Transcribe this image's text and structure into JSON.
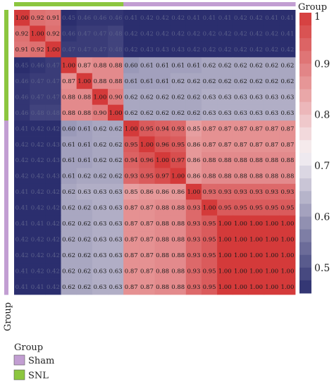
{
  "chart_data": {
    "type": "heatmap",
    "title": "",
    "row_count": 18,
    "col_count": 18,
    "groups": [
      {
        "name": "Sham",
        "color": "#c29ed2"
      },
      {
        "name": "SNL",
        "color": "#8cc63f"
      }
    ],
    "column_groups": [
      "SNL",
      "SNL",
      "SNL",
      "SNL",
      "SNL",
      "SNL",
      "SNL",
      "Sham",
      "Sham",
      "Sham",
      "Sham",
      "Sham",
      "Sham",
      "Sham",
      "Sham",
      "Sham",
      "Sham",
      "Sham"
    ],
    "row_groups": [
      "SNL",
      "SNL",
      "SNL",
      "SNL",
      "SNL",
      "SNL",
      "SNL",
      "Sham",
      "Sham",
      "Sham",
      "Sham",
      "Sham",
      "Sham",
      "Sham",
      "Sham",
      "Sham",
      "Sham",
      "Sham"
    ],
    "values": [
      [
        1.0,
        0.92,
        0.91,
        0.45,
        0.46,
        0.46,
        0.46,
        0.41,
        0.42,
        0.42,
        0.42,
        0.41,
        0.41,
        0.41,
        0.42,
        0.42,
        0.41,
        0.41
      ],
      [
        0.92,
        1.0,
        0.92,
        0.46,
        0.47,
        0.47,
        0.48,
        0.42,
        0.42,
        0.42,
        0.42,
        0.42,
        0.42,
        0.42,
        0.42,
        0.42,
        0.42,
        0.41
      ],
      [
        0.91,
        0.92,
        1.0,
        0.47,
        0.47,
        0.47,
        0.48,
        0.42,
        0.43,
        0.43,
        0.43,
        0.42,
        0.42,
        0.42,
        0.42,
        0.42,
        0.42,
        0.42
      ],
      [
        0.45,
        0.46,
        0.47,
        1.0,
        0.87,
        0.88,
        0.88,
        0.6,
        0.61,
        0.61,
        0.61,
        0.61,
        0.62,
        0.62,
        0.62,
        0.62,
        0.62,
        0.62
      ],
      [
        0.46,
        0.47,
        0.47,
        0.87,
        1.0,
        0.88,
        0.88,
        0.61,
        0.61,
        0.61,
        0.62,
        0.62,
        0.62,
        0.62,
        0.62,
        0.62,
        0.62,
        0.62
      ],
      [
        0.46,
        0.47,
        0.47,
        0.88,
        0.88,
        1.0,
        0.9,
        0.62,
        0.62,
        0.62,
        0.62,
        0.62,
        0.63,
        0.63,
        0.63,
        0.63,
        0.63,
        0.63
      ],
      [
        0.46,
        0.48,
        0.48,
        0.88,
        0.88,
        0.9,
        1.0,
        0.62,
        0.62,
        0.62,
        0.62,
        0.62,
        0.63,
        0.63,
        0.63,
        0.63,
        0.63,
        0.63
      ],
      [
        0.41,
        0.42,
        0.42,
        0.6,
        0.61,
        0.62,
        0.62,
        1.0,
        0.95,
        0.94,
        0.93,
        0.85,
        0.87,
        0.87,
        0.87,
        0.87,
        0.87,
        0.87
      ],
      [
        0.42,
        0.42,
        0.43,
        0.61,
        0.61,
        0.62,
        0.62,
        0.95,
        1.0,
        0.96,
        0.95,
        0.86,
        0.87,
        0.87,
        0.87,
        0.87,
        0.87,
        0.87
      ],
      [
        0.42,
        0.42,
        0.43,
        0.61,
        0.61,
        0.62,
        0.62,
        0.94,
        0.96,
        1.0,
        0.97,
        0.86,
        0.88,
        0.88,
        0.88,
        0.88,
        0.88,
        0.88
      ],
      [
        0.42,
        0.42,
        0.43,
        0.61,
        0.62,
        0.62,
        0.62,
        0.93,
        0.95,
        0.97,
        1.0,
        0.86,
        0.88,
        0.88,
        0.88,
        0.88,
        0.88,
        0.88
      ],
      [
        0.41,
        0.42,
        0.42,
        0.62,
        0.63,
        0.63,
        0.63,
        0.85,
        0.86,
        0.86,
        0.86,
        1.0,
        0.93,
        0.93,
        0.93,
        0.93,
        0.93,
        0.93
      ],
      [
        0.41,
        0.42,
        0.42,
        0.62,
        0.62,
        0.63,
        0.63,
        0.87,
        0.87,
        0.88,
        0.88,
        0.93,
        1.0,
        0.95,
        0.95,
        0.95,
        0.95,
        0.95
      ],
      [
        0.41,
        0.41,
        0.42,
        0.62,
        0.62,
        0.63,
        0.63,
        0.87,
        0.87,
        0.88,
        0.88,
        0.93,
        0.95,
        1.0,
        1.0,
        1.0,
        1.0,
        1.0
      ],
      [
        0.42,
        0.42,
        0.42,
        0.62,
        0.62,
        0.63,
        0.63,
        0.87,
        0.87,
        0.88,
        0.88,
        0.93,
        0.95,
        1.0,
        1.0,
        1.0,
        1.0,
        1.0
      ],
      [
        0.42,
        0.42,
        0.42,
        0.62,
        0.62,
        0.63,
        0.63,
        0.87,
        0.87,
        0.88,
        0.88,
        0.93,
        0.95,
        1.0,
        1.0,
        1.0,
        1.0,
        1.0
      ],
      [
        0.41,
        0.42,
        0.42,
        0.62,
        0.62,
        0.63,
        0.63,
        0.87,
        0.87,
        0.88,
        0.88,
        0.93,
        0.95,
        1.0,
        1.0,
        1.0,
        1.0,
        1.0
      ],
      [
        0.41,
        0.41,
        0.42,
        0.62,
        0.62,
        0.63,
        0.63,
        0.87,
        0.87,
        0.88,
        0.88,
        0.93,
        0.95,
        1.0,
        1.0,
        1.0,
        1.0,
        1.0
      ]
    ],
    "color_scale": {
      "min": 0.45,
      "max": 1.0,
      "ticks": [
        0.5,
        0.6,
        0.7,
        0.8,
        0.9,
        1
      ],
      "tick_labels": [
        "0.5",
        "0.6",
        "0.7",
        "0.8",
        "0.9",
        "1"
      ],
      "low_color": "#2b2e6e",
      "mid_color": "#f7f2f5",
      "high_color": "#d43a3a"
    },
    "legend": {
      "title": "Group",
      "entries": [
        {
          "label": "Sham",
          "color": "#c29ed2"
        },
        {
          "label": "SNL",
          "color": "#8cc63f"
        }
      ]
    },
    "colorbar_title": "Group",
    "row_axis_title": "Group"
  }
}
